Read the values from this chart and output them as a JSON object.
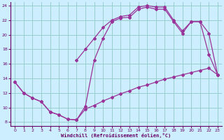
{
  "xlabel": "Windchill (Refroidissement éolien,°C)",
  "bg_color": "#cceeff",
  "line_color": "#993399",
  "grid_color": "#99cccc",
  "xlim": [
    -0.5,
    23.5
  ],
  "ylim": [
    7.5,
    24.5
  ],
  "yticks": [
    8,
    10,
    12,
    14,
    16,
    18,
    20,
    22,
    24
  ],
  "xticks": [
    0,
    1,
    2,
    3,
    4,
    5,
    6,
    7,
    8,
    9,
    10,
    11,
    12,
    13,
    14,
    15,
    16,
    17,
    18,
    19,
    20,
    21,
    22,
    23
  ],
  "line1_x": [
    0,
    1,
    2,
    3,
    4,
    5,
    6,
    7,
    8,
    9,
    10,
    11,
    12,
    13,
    14,
    15,
    16,
    17,
    18,
    19,
    20,
    21,
    22,
    23
  ],
  "line1_y": [
    13.5,
    12.0,
    11.3,
    10.8,
    9.4,
    9.0,
    8.4,
    8.3,
    9.8,
    10.3,
    10.9,
    11.4,
    11.9,
    12.3,
    12.8,
    13.1,
    13.5,
    13.9,
    14.2,
    14.5,
    14.8,
    15.1,
    15.4,
    14.5
  ],
  "line2_x": [
    0,
    1,
    2,
    3,
    4,
    5,
    6,
    7,
    8,
    9,
    10,
    11,
    12,
    13,
    14,
    15,
    16,
    17,
    18,
    19,
    20,
    21,
    22,
    23
  ],
  "line2_y": [
    13.5,
    12.0,
    11.3,
    10.8,
    9.4,
    9.0,
    8.4,
    8.3,
    10.2,
    16.5,
    19.5,
    21.8,
    22.3,
    22.4,
    23.5,
    23.8,
    23.5,
    23.5,
    21.8,
    20.2,
    21.8,
    21.8,
    17.3,
    14.5
  ],
  "line3_x": [
    7,
    8,
    9,
    10,
    11,
    12,
    13,
    14,
    15,
    16,
    17,
    18,
    19,
    20,
    21,
    22,
    23
  ],
  "line3_y": [
    16.5,
    18.0,
    19.5,
    21.0,
    22.0,
    22.5,
    22.7,
    23.8,
    24.0,
    23.8,
    23.8,
    22.0,
    20.5,
    21.8,
    21.8,
    20.2,
    14.5
  ]
}
